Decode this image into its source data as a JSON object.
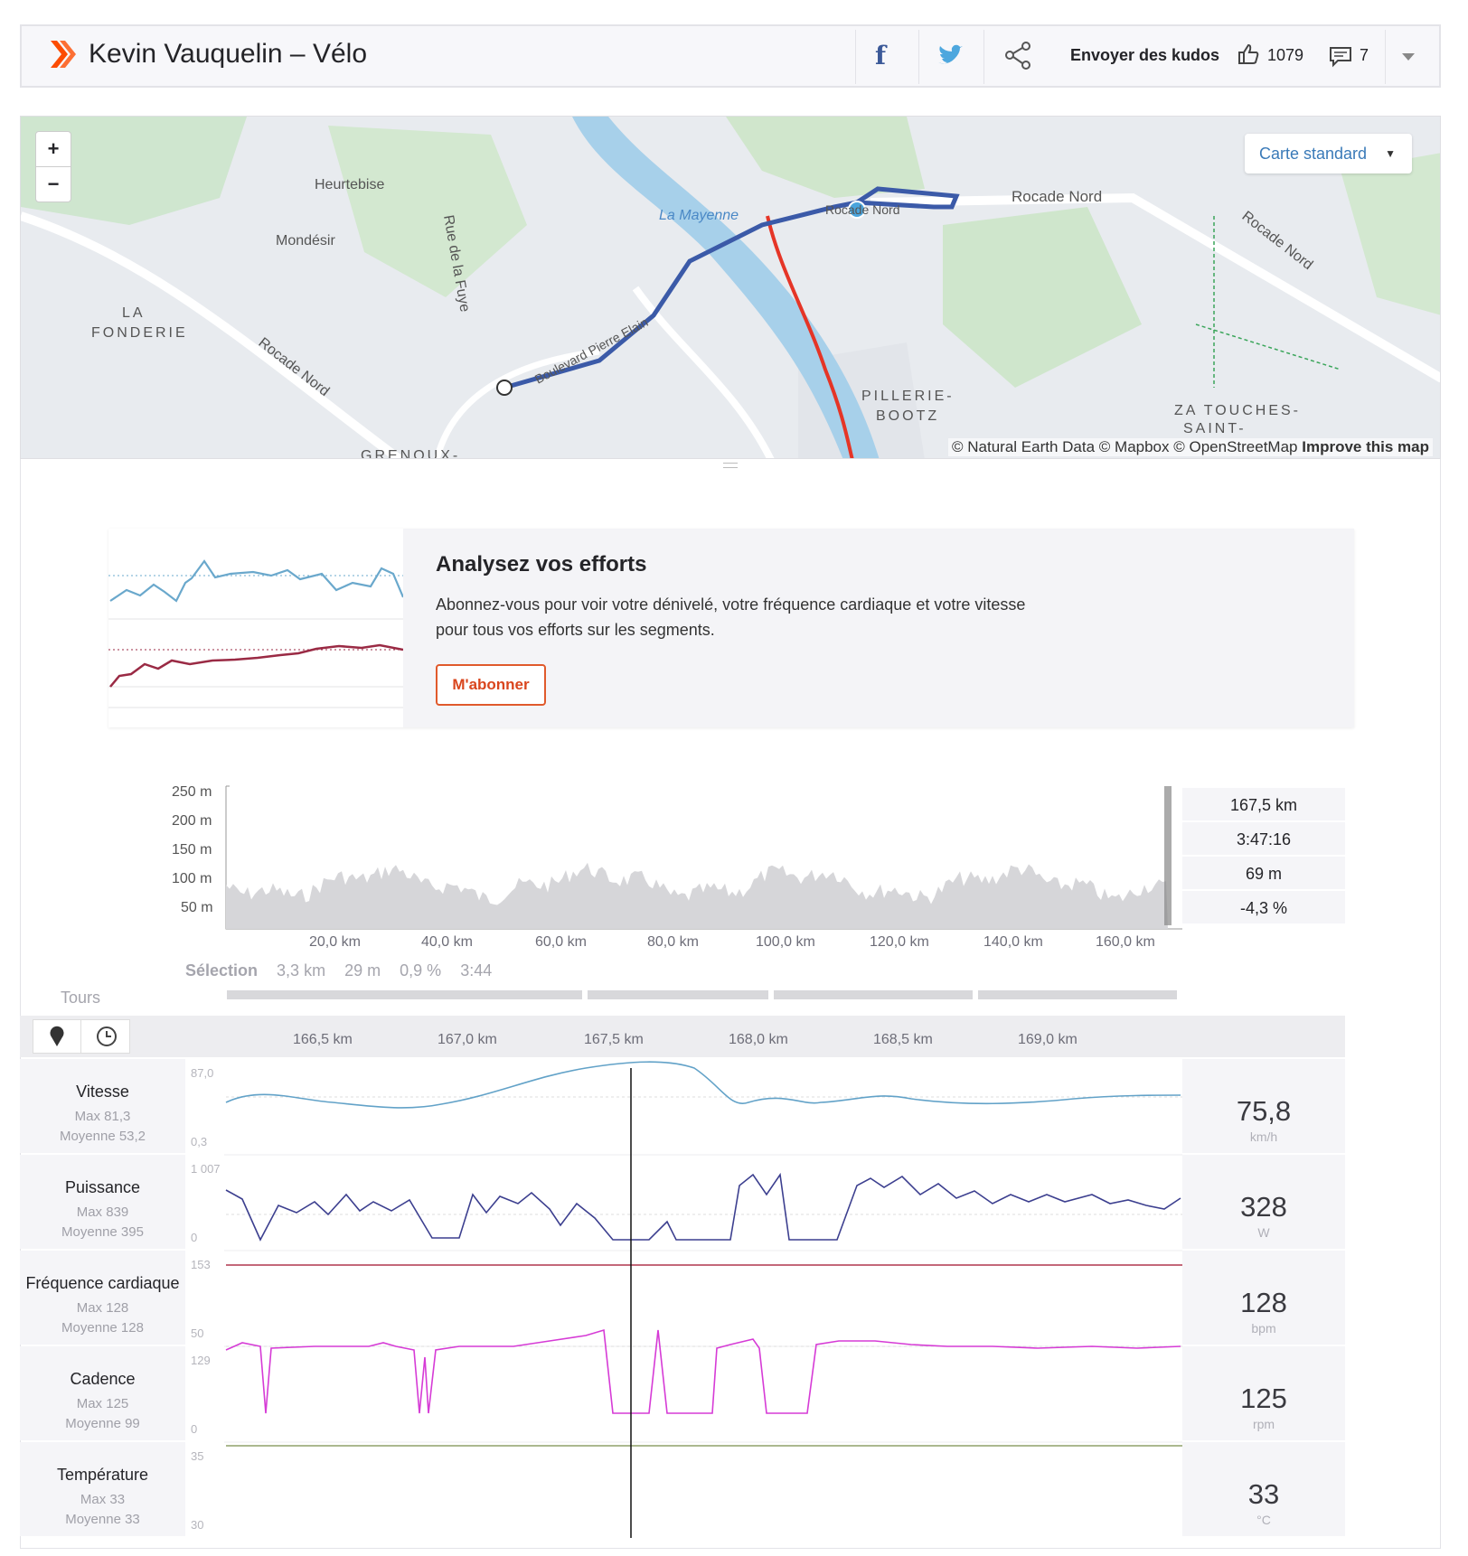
{
  "header": {
    "title": "Kevin Vauquelin – Vélo",
    "kudos_label": "Envoyer des kudos",
    "kudos_count": "1079",
    "comments_count": "7"
  },
  "map": {
    "style_label": "Carte standard",
    "zoom_in": "+",
    "zoom_out": "−",
    "labels": [
      "Heurtebise",
      "Mondésir",
      "LA",
      "FONDERIE",
      "Rue de la Fuye",
      "La Mayenne",
      "Rocade Nord",
      "Rocade Nord",
      "Rocade Nord",
      "PILLERIE-",
      "BOOTZ",
      "ZA TOUCHES-",
      "SAINT-",
      "GRENOUX-",
      "Boulevard Pierre Elain",
      "Rocade Nord"
    ],
    "attribution": "© Natural Earth Data © Mapbox © OpenStreetMap",
    "improve": "Improve this map"
  },
  "upsell": {
    "title": "Analysez vos efforts",
    "body_line1": "Abonnez-vous pour voir votre dénivelé, votre fréquence cardiaque et votre vitesse",
    "body_line2": "pour tous vos efforts sur les segments.",
    "button": "M'abonner"
  },
  "elevation": {
    "y_ticks": [
      "250 m",
      "200 m",
      "150 m",
      "100 m",
      "50 m"
    ],
    "x_ticks": [
      "20,0 km",
      "40,0 km",
      "60,0 km",
      "80,0 km",
      "100,0 km",
      "120,0 km",
      "140,0 km",
      "160,0 km"
    ],
    "readout": [
      "167,5 km",
      "3:47:16",
      "69 m",
      "-4,3 %"
    ],
    "selection": {
      "label": "Sélection",
      "distance": "3,3 km",
      "gain": "29 m",
      "grade": "0,9 %",
      "time": "3:44"
    },
    "laps_label": "Tours"
  },
  "zoom_axis": [
    "166,5 km",
    "167,0 km",
    "167,5 km",
    "168,0 km",
    "168,5 km",
    "169,0 km"
  ],
  "metrics": [
    {
      "name": "Vitesse",
      "max": "Max 81,3",
      "avg": "Moyenne 53,2",
      "ymax": "87,0",
      "ymin": "0,3",
      "value": "75,8",
      "unit": "km/h",
      "color": "#62a2c8"
    },
    {
      "name": "Puissance",
      "max": "Max 839",
      "avg": "Moyenne 395",
      "ymax": "1 007",
      "ymin": "0",
      "value": "328",
      "unit": "W",
      "color": "#3c3f8f"
    },
    {
      "name": "Fréquence cardiaque",
      "max": "Max 128",
      "avg": "Moyenne 128",
      "ymax": "153",
      "ymin": "50",
      "value": "128",
      "unit": "bpm",
      "color": "#b0364f"
    },
    {
      "name": "Cadence",
      "max": "Max 125",
      "avg": "Moyenne 99",
      "ymax": "129",
      "ymin": "0",
      "value": "125",
      "unit": "rpm",
      "color": "#d63bd6"
    },
    {
      "name": "Température",
      "max": "Max 33",
      "avg": "Moyenne 33",
      "ymax": "35",
      "ymin": "30",
      "value": "33",
      "unit": "°C",
      "color": "#8fa06a"
    }
  ]
}
